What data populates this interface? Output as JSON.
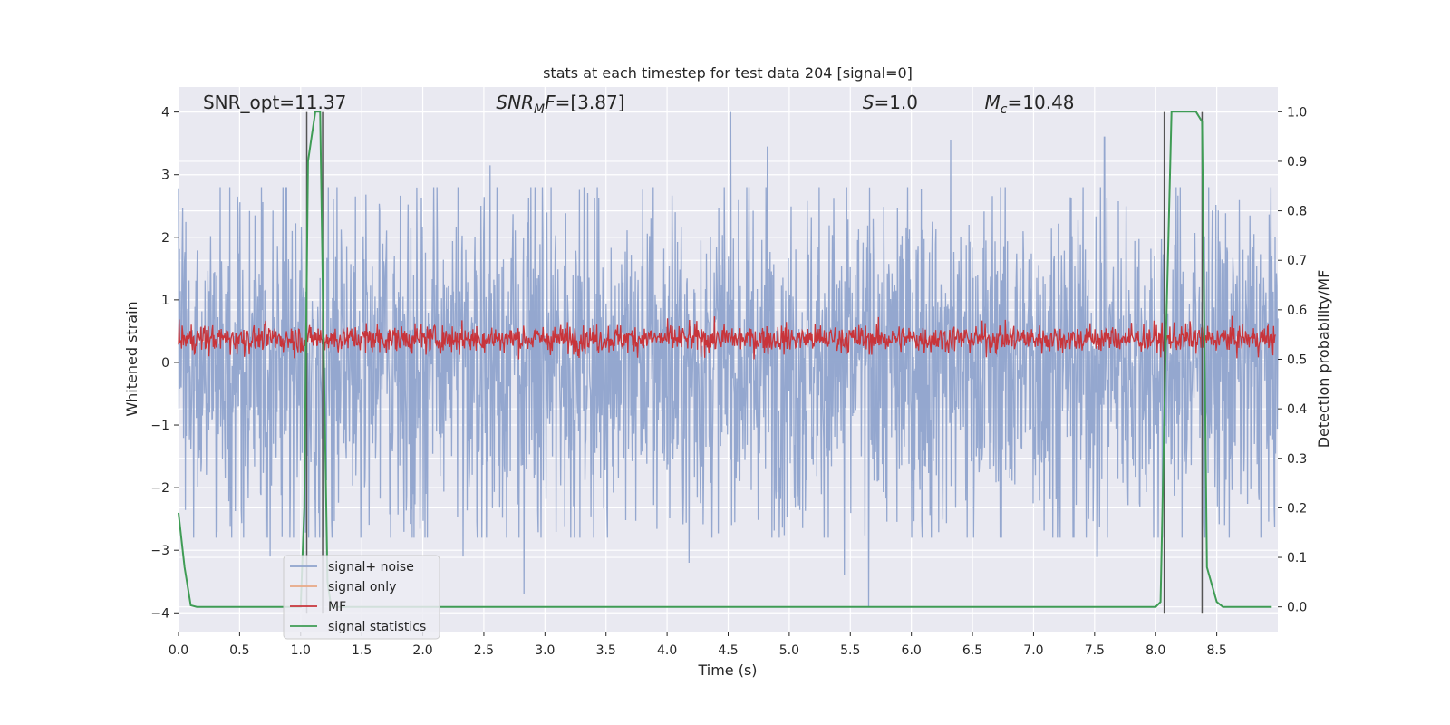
{
  "chart_data": {
    "type": "line",
    "title": "stats at each timestep for test data 204 [signal=0]",
    "xlabel": "Time (s)",
    "ylabel": "Whitened strain",
    "ylabel_right": "Detection probability/MF",
    "xlim": [
      0,
      9.0
    ],
    "ylim": [
      -4.3,
      4.4
    ],
    "ylim_right": [
      -0.05,
      1.05
    ],
    "x_ticks": [
      0.0,
      0.5,
      1.0,
      1.5,
      2.0,
      2.5,
      3.0,
      3.5,
      4.0,
      4.5,
      5.0,
      5.5,
      6.0,
      6.5,
      7.0,
      7.5,
      8.0,
      8.5
    ],
    "x_tick_labels": [
      "0.0",
      "0.5",
      "1.0",
      "1.5",
      "2.0",
      "2.5",
      "3.0",
      "3.5",
      "4.0",
      "4.5",
      "5.0",
      "5.5",
      "6.0",
      "6.5",
      "7.0",
      "7.5",
      "8.0",
      "8.5"
    ],
    "y_ticks": [
      4,
      3,
      2,
      1,
      0,
      -1,
      -2,
      -3,
      -4
    ],
    "y_tick_labels": [
      "4",
      "3",
      "2",
      "1",
      "0",
      "−1",
      "−2",
      "−3",
      "−4"
    ],
    "y_right_ticks": [
      1.0,
      0.9,
      0.8,
      0.7,
      0.6,
      0.5,
      0.4,
      0.3,
      0.2,
      0.1,
      0.0
    ],
    "y_right_tick_labels": [
      "1.0",
      "0.9",
      "0.8",
      "0.7",
      "0.6",
      "0.5",
      "0.4",
      "0.3",
      "0.2",
      "0.1",
      "0.0"
    ],
    "annotations": [
      {
        "text": "SNR_opt=11.37",
        "x": 0.2,
        "y": 4.05
      },
      {
        "text": "SNR_MF=[3.87]",
        "x": 2.6,
        "y": 4.05
      },
      {
        "text": "S=1.0",
        "x": 5.6,
        "y": 4.05
      },
      {
        "text": "M_c=10.48",
        "x": 6.6,
        "y": 4.05
      }
    ],
    "noise_envelope": {
      "description": "signal+ noise: dense whitened strain samples, symmetric band roughly between -2.5 and +2.5 with spikes",
      "x_start": 0.0,
      "x_end": 9.0,
      "typical_amplitude": 2.0,
      "max_peaks": [
        {
          "x": 4.52,
          "y": 4.0
        },
        {
          "x": 6.32,
          "y": 3.55
        },
        {
          "x": 4.82,
          "y": 3.45
        },
        {
          "x": 2.55,
          "y": 3.15
        },
        {
          "x": 7.58,
          "y": 3.6
        },
        {
          "x": 5.65,
          "y": -3.9
        },
        {
          "x": 2.83,
          "y": -3.7
        },
        {
          "x": 5.45,
          "y": -3.4
        },
        {
          "x": 0.75,
          "y": -3.1
        },
        {
          "x": 4.18,
          "y": -3.2
        },
        {
          "x": 2.33,
          "y": -3.1
        },
        {
          "x": 7.52,
          "y": -3.1
        }
      ]
    },
    "mf_band": {
      "y_min": 0.05,
      "y_max": 0.8,
      "mean": 0.38
    },
    "signal_statistics": {
      "x": [
        0.0,
        0.05,
        0.1,
        0.15,
        1.0,
        1.03,
        1.06,
        1.09,
        1.12,
        1.16,
        1.19,
        1.22,
        1.25,
        1.3,
        8.0,
        8.04,
        8.08,
        8.13,
        8.33,
        8.38,
        8.42,
        8.5,
        8.55,
        8.95
      ],
      "y": [
        0.19,
        0.08,
        0.003,
        0.0,
        0.0,
        0.2,
        0.9,
        0.95,
        1.0,
        1.0,
        0.5,
        0.05,
        0.0,
        0.0,
        0.0,
        0.01,
        0.5,
        1.0,
        1.0,
        0.98,
        0.08,
        0.01,
        0.0,
        0.0
      ]
    },
    "event_markers": [
      {
        "x": 1.05,
        "y_top": 4.0,
        "y_bottom": -4.0
      },
      {
        "x": 1.18,
        "y_top": 4.0,
        "y_bottom": -4.0
      },
      {
        "x": 8.07,
        "y_top": 4.0,
        "y_bottom": -4.0
      },
      {
        "x": 8.38,
        "y_top": 4.0,
        "y_bottom": -4.0
      }
    ],
    "series": [
      {
        "name": "signal+ noise",
        "color": "#8fa3cc"
      },
      {
        "name": "signal only",
        "color": "#e8a884"
      },
      {
        "name": "MF",
        "color": "#c8343a"
      },
      {
        "name": "signal statistics",
        "color": "#3f9c55"
      }
    ],
    "legend_position": "bottom-left",
    "grid": true,
    "colors": {
      "axes_bg": "#e9e9f1",
      "grid": "#ffffff",
      "marker": "#555555"
    }
  }
}
